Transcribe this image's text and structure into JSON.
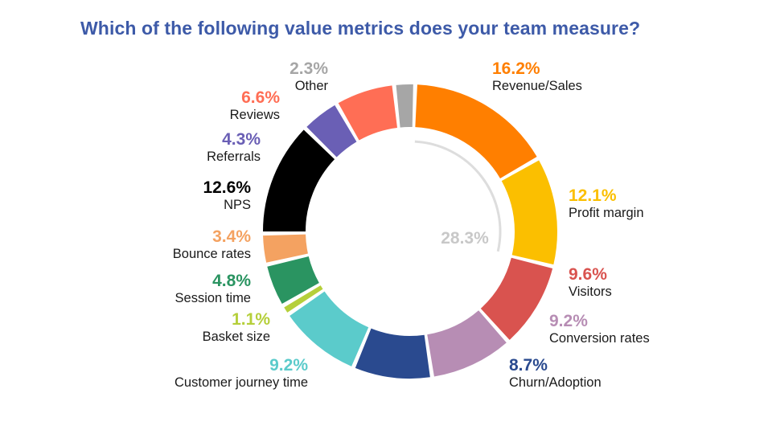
{
  "chart_data": {
    "type": "pie",
    "title": "Which of the following value metrics does your team measure?",
    "center_label": "28.3%",
    "center_color": "#c8c8c8",
    "slices": [
      {
        "label": "Revenue/Sales",
        "value": 16.2,
        "display": "16.2%",
        "color": "#ff7f00"
      },
      {
        "label": "Profit margin",
        "value": 12.1,
        "display": "12.1%",
        "color": "#fbbf00"
      },
      {
        "label": "Visitors",
        "value": 9.6,
        "display": "9.6%",
        "color": "#d9534f"
      },
      {
        "label": "Conversion rates",
        "value": 9.2,
        "display": "9.2%",
        "color": "#b78db4"
      },
      {
        "label": "Churn/Adoption",
        "value": 8.7,
        "display": "8.7%",
        "color": "#2a4a8f"
      },
      {
        "label": "Customer journey time",
        "value": 9.2,
        "display": "9.2%",
        "color": "#5bcbcb"
      },
      {
        "label": "Basket size",
        "value": 1.1,
        "display": "1.1%",
        "color": "#b5cf3a"
      },
      {
        "label": "Session time",
        "value": 4.8,
        "display": "4.8%",
        "color": "#2a9461"
      },
      {
        "label": "Bounce rates",
        "value": 3.4,
        "display": "3.4%",
        "color": "#f4a261"
      },
      {
        "label": "NPS",
        "value": 12.6,
        "display": "12.6%",
        "color": "#000000"
      },
      {
        "label": "Referrals",
        "value": 4.3,
        "display": "4.3%",
        "color": "#6a5fb5"
      },
      {
        "label": "Reviews",
        "value": 6.6,
        "display": "6.6%",
        "color": "#ff6e55"
      },
      {
        "label": "Other",
        "value": 2.3,
        "display": "2.3%",
        "color": "#a6a6a6"
      }
    ]
  }
}
